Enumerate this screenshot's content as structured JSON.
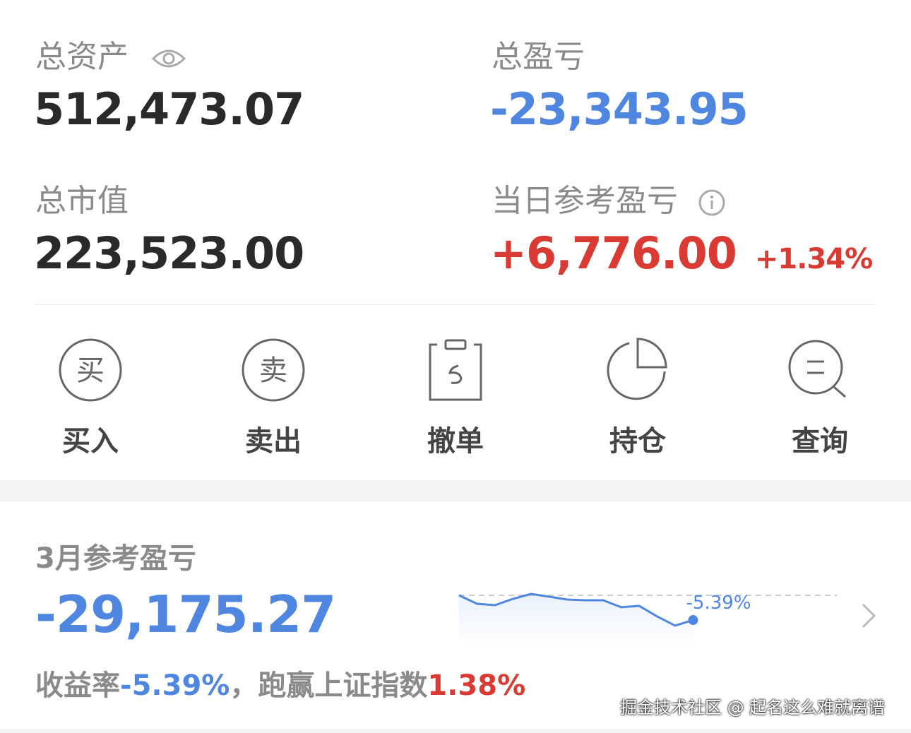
{
  "summary": {
    "total_assets_label": "总资产",
    "total_assets_value": "512,473.07",
    "total_pnl_label": "总盈亏",
    "total_pnl_value": "-23,343.95",
    "market_value_label": "总市值",
    "market_value_value": "223,523.00",
    "daily_pnl_label": "当日参考盈亏",
    "daily_pnl_value": "+6,776.00",
    "daily_pnl_pct": "+1.34%"
  },
  "actions": [
    {
      "label": "买入",
      "icon": "buy-icon",
      "glyph": "买"
    },
    {
      "label": "卖出",
      "icon": "sell-icon",
      "glyph": "卖"
    },
    {
      "label": "撤单",
      "icon": "cancel-order-icon"
    },
    {
      "label": "持仓",
      "icon": "pie-chart-icon"
    },
    {
      "label": "查询",
      "icon": "search-icon"
    }
  ],
  "monthly": {
    "title": "3月参考盈亏",
    "value": "-29,175.27",
    "rate_label": "收益率",
    "rate_value": "-5.39%",
    "beat_label": "，跑赢上证指数",
    "beat_value": "1.38%",
    "sparkline_label": "-5.39%"
  },
  "chart_data": {
    "type": "line",
    "baseline": 0,
    "values": [
      0,
      -1.85,
      -2.15,
      -0.77,
      0.3,
      -0.3,
      -0.92,
      -1.08,
      -1.08,
      -2.6,
      -2.3,
      -4.6,
      -6.6,
      -5.39
    ],
    "end_label": "-5.39%"
  },
  "watermark": "掘金技术社区 @ 起名这么难就离谱",
  "colors": {
    "blue": "#4f86e0",
    "red": "#d93a33",
    "gray": "#8a8a8a"
  }
}
